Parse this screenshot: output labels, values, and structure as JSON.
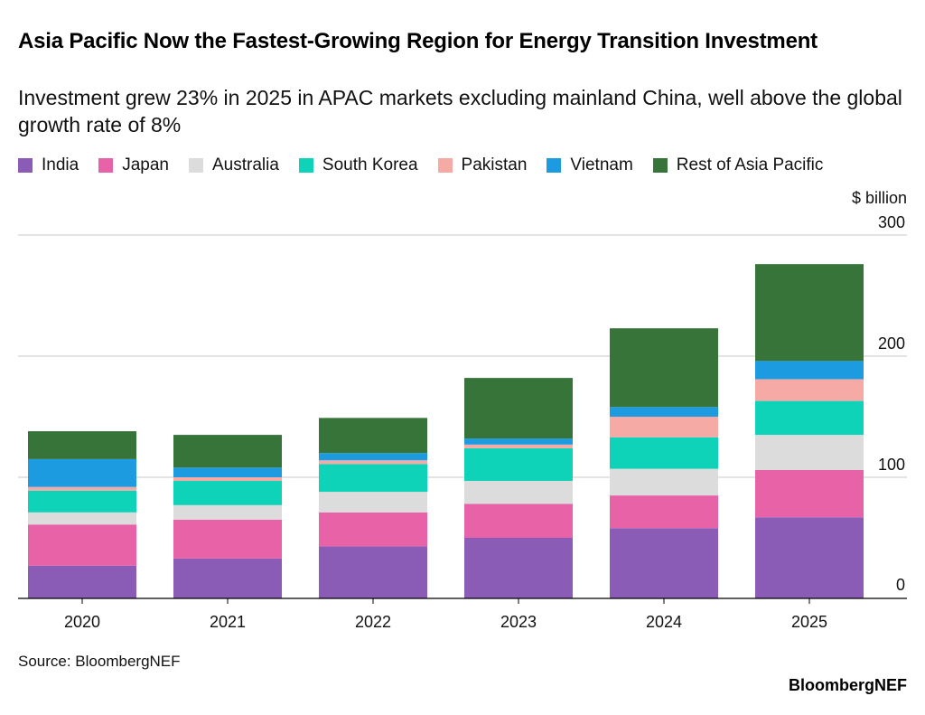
{
  "title": "Asia Pacific Now the Fastest-Growing Region for Energy Transition Investment",
  "subtitle": "Investment grew 23% in 2025 in APAC markets excluding mainland China, well above the global growth rate of 8%",
  "source": "Source: BloombergNEF",
  "brand": "BloombergNEF",
  "chart_data": {
    "type": "bar",
    "stacked": true,
    "unit": "$ billion",
    "categories": [
      "2020",
      "2021",
      "2022",
      "2023",
      "2024",
      "2025"
    ],
    "ylim": [
      0,
      300
    ],
    "yticks": [
      0,
      100,
      200,
      300
    ],
    "grid": true,
    "legend_position": "top",
    "series": [
      {
        "name": "India",
        "color": "#8b5cb6",
        "values": [
          27,
          33,
          43,
          50,
          58,
          67
        ]
      },
      {
        "name": "Japan",
        "color": "#e862a8",
        "values": [
          34,
          32,
          28,
          28,
          27,
          39
        ]
      },
      {
        "name": "Australia",
        "color": "#dcdcdc",
        "values": [
          10,
          12,
          17,
          19,
          22,
          29
        ]
      },
      {
        "name": "South Korea",
        "color": "#0ed3b8",
        "values": [
          18,
          20,
          23,
          27,
          26,
          28
        ]
      },
      {
        "name": "Pakistan",
        "color": "#f6aaa6",
        "values": [
          3,
          3,
          3,
          3,
          17,
          18
        ]
      },
      {
        "name": "Vietnam",
        "color": "#1d9be0",
        "values": [
          23,
          8,
          6,
          5,
          8,
          15
        ]
      },
      {
        "name": "Rest of Asia Pacific",
        "color": "#36743a",
        "values": [
          23,
          27,
          29,
          50,
          65,
          80
        ]
      }
    ]
  }
}
